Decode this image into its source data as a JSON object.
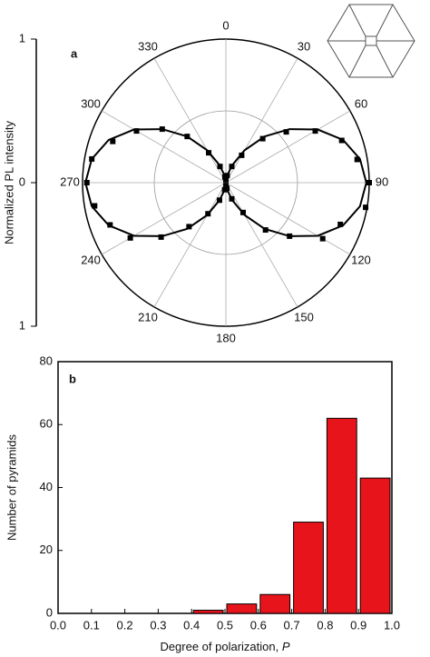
{
  "chart_data": [
    {
      "type": "polar",
      "panel_label": "a",
      "ylabel": "Normalized PL intensity",
      "ylim": [
        -1,
        1
      ],
      "yticks": [
        1,
        0,
        {
          "value": -1,
          "label": "1"
        }
      ],
      "rlim": [
        0,
        1
      ],
      "rgrid": [
        0.5,
        1
      ],
      "thetaticks": [
        0,
        30,
        60,
        90,
        120,
        150,
        180,
        210,
        240,
        270,
        300,
        330
      ],
      "color": "#000000",
      "angles": [
        0,
        10,
        20,
        30,
        40,
        50,
        60,
        70,
        80,
        90,
        100,
        110,
        120,
        130,
        140,
        150,
        160,
        170,
        180,
        190,
        200,
        210,
        220,
        230,
        240,
        250,
        260,
        270,
        280,
        290,
        300,
        310,
        320,
        330,
        340,
        350
      ],
      "values": [
        0.02,
        0.05,
        0.12,
        0.22,
        0.4,
        0.55,
        0.72,
        0.86,
        0.93,
        1.0,
        0.99,
        0.85,
        0.78,
        0.58,
        0.43,
        0.24,
        0.12,
        0.04,
        0.02,
        0.05,
        0.13,
        0.25,
        0.4,
        0.59,
        0.77,
        0.86,
        0.93,
        0.97,
        0.95,
        0.84,
        0.72,
        0.58,
        0.42,
        0.24,
        0.12,
        0.04
      ],
      "fit": {
        "angles": [
          0,
          10,
          20,
          30,
          40,
          50,
          60,
          70,
          80,
          90,
          100,
          110,
          120,
          130,
          140,
          150,
          160,
          170,
          180,
          190,
          200,
          210,
          220,
          230,
          240,
          250,
          260,
          270,
          280,
          290,
          300,
          310,
          320,
          330,
          340,
          350
        ],
        "values": [
          0.02,
          0.05,
          0.13,
          0.26,
          0.42,
          0.58,
          0.74,
          0.87,
          0.95,
          0.98,
          0.95,
          0.87,
          0.74,
          0.58,
          0.42,
          0.26,
          0.13,
          0.05,
          0.02,
          0.05,
          0.13,
          0.26,
          0.42,
          0.58,
          0.74,
          0.87,
          0.95,
          0.98,
          0.95,
          0.87,
          0.74,
          0.58,
          0.42,
          0.26,
          0.13,
          0.05
        ]
      }
    },
    {
      "type": "histogram",
      "panel_label": "b",
      "ylabel": "Number of pyramids",
      "xlabel": "Degree of polarization,",
      "xlabel_var": "P",
      "bins": [
        0.0,
        0.1,
        0.2,
        0.3,
        0.4,
        0.5,
        0.6,
        0.7,
        0.8,
        0.9,
        1.0
      ],
      "values": [
        0,
        0,
        0,
        0,
        1,
        3,
        6,
        29,
        62,
        43
      ],
      "color": "#e8141c",
      "xlim": [
        0,
        1
      ],
      "xticks": [
        {
          "value": 0,
          "label": "0.0"
        },
        0.1,
        0.2,
        0.3,
        0.4,
        0.5,
        0.6,
        0.7,
        0.8,
        0.9,
        {
          "value": 1,
          "label": "1.0"
        }
      ],
      "ylim": [
        0,
        80
      ],
      "yticks": [
        0,
        20,
        40,
        60,
        80
      ]
    }
  ]
}
